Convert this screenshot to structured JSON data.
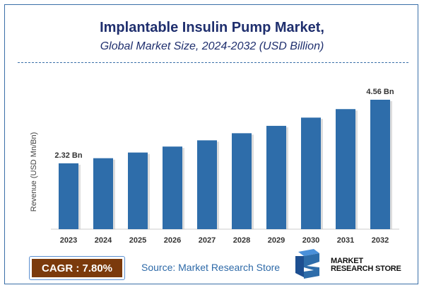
{
  "header": {
    "title": "Implantable Insulin Pump Market,",
    "subtitle": "Global Market Size, 2024-2032 (USD Billion)"
  },
  "chart_data": {
    "type": "bar",
    "categories": [
      "2023",
      "2024",
      "2025",
      "2026",
      "2027",
      "2028",
      "2029",
      "2030",
      "2031",
      "2032"
    ],
    "values": [
      2.32,
      2.5,
      2.7,
      2.91,
      3.13,
      3.38,
      3.64,
      3.93,
      4.23,
      4.56
    ],
    "data_labels": {
      "0": "2.32 Bn",
      "9": "4.56 Bn"
    },
    "ylabel": "Revenue (USD Mn/Bn)",
    "xlabel": "",
    "ylim": [
      0,
      5
    ],
    "grid": false,
    "bar_color": "#2e6daa"
  },
  "footer": {
    "cagr": "CAGR : 7.80%",
    "source": "Source: Market Research Store",
    "logo_line1": "MARKET",
    "logo_line2": "RESEARCH STORE"
  },
  "colors": {
    "title": "#1f2f6e",
    "cagr_bg": "#7b3a0c",
    "source": "#2e6aa8"
  }
}
